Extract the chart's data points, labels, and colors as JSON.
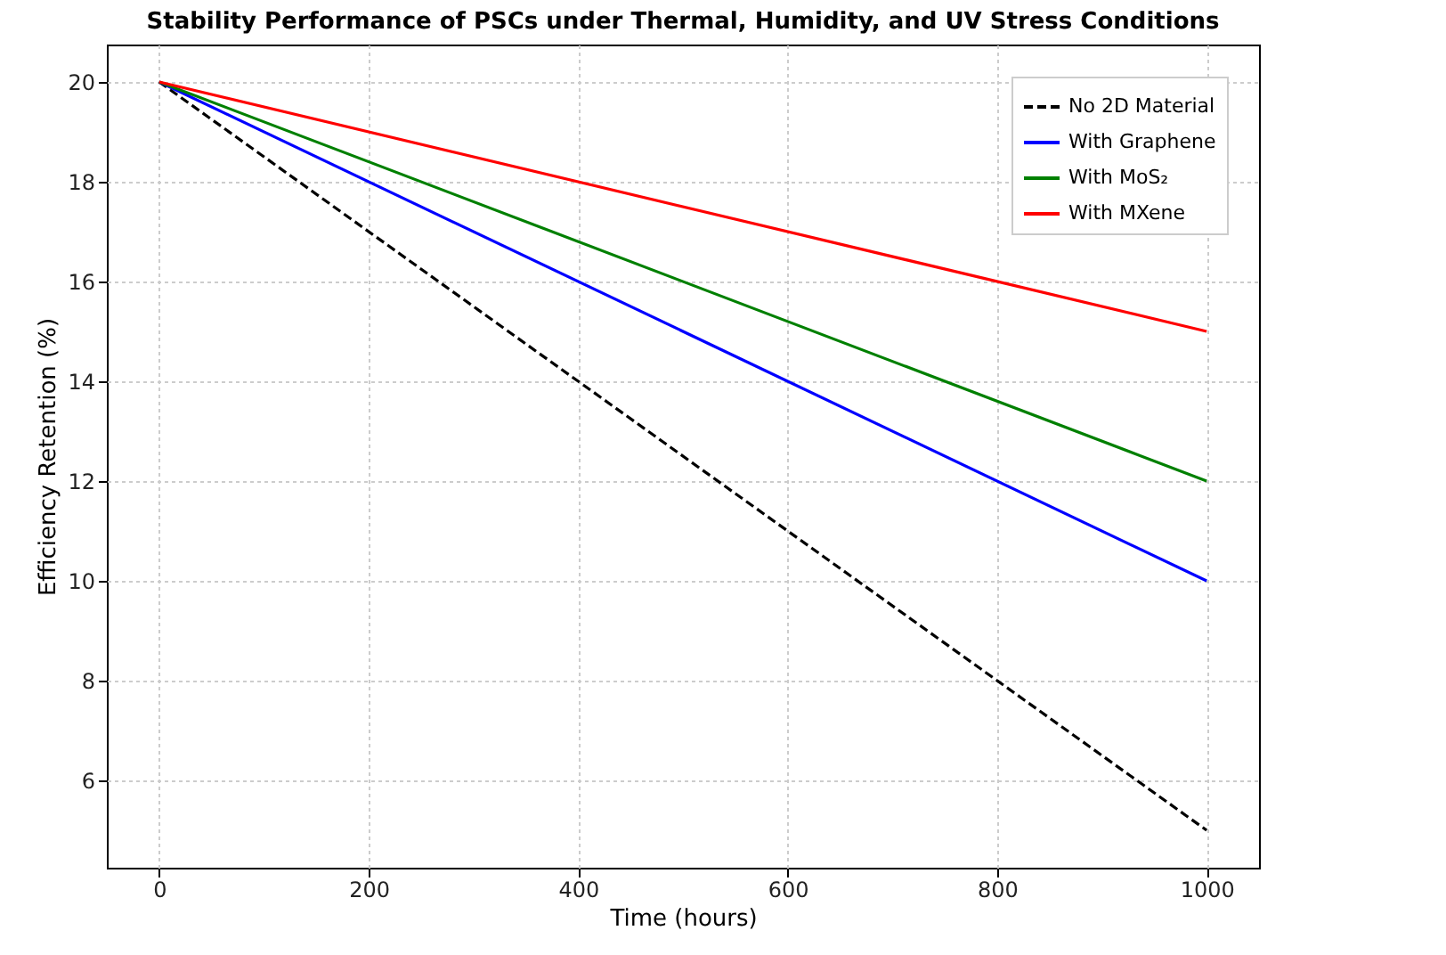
{
  "chart_data": {
    "type": "line",
    "title": "Stability Performance of PSCs under Thermal, Humidity, and UV Stress Conditions",
    "xlabel": "Time (hours)",
    "ylabel": "Efficiency Retention (%)",
    "x": [
      0,
      1000
    ],
    "series": [
      {
        "name": "No 2D Material",
        "color": "#000000",
        "line_style": "dashed",
        "values": [
          20,
          5
        ]
      },
      {
        "name": "With Graphene",
        "color": "#0000ff",
        "values": [
          20,
          10
        ]
      },
      {
        "name": "With MoS₂",
        "color": "#008000",
        "values": [
          20,
          12
        ]
      },
      {
        "name": "With MXene",
        "color": "#ff0000",
        "values": [
          20,
          15
        ]
      }
    ],
    "xlim": [
      -50,
      1050
    ],
    "xticks": [
      0,
      200,
      400,
      600,
      800,
      1000
    ],
    "ylim": [
      4.25,
      20.75
    ],
    "yticks": [
      6,
      8,
      10,
      12,
      14,
      16,
      18,
      20
    ],
    "grid": true,
    "legend": "top right",
    "marker": "none",
    "line_style": "solid"
  }
}
